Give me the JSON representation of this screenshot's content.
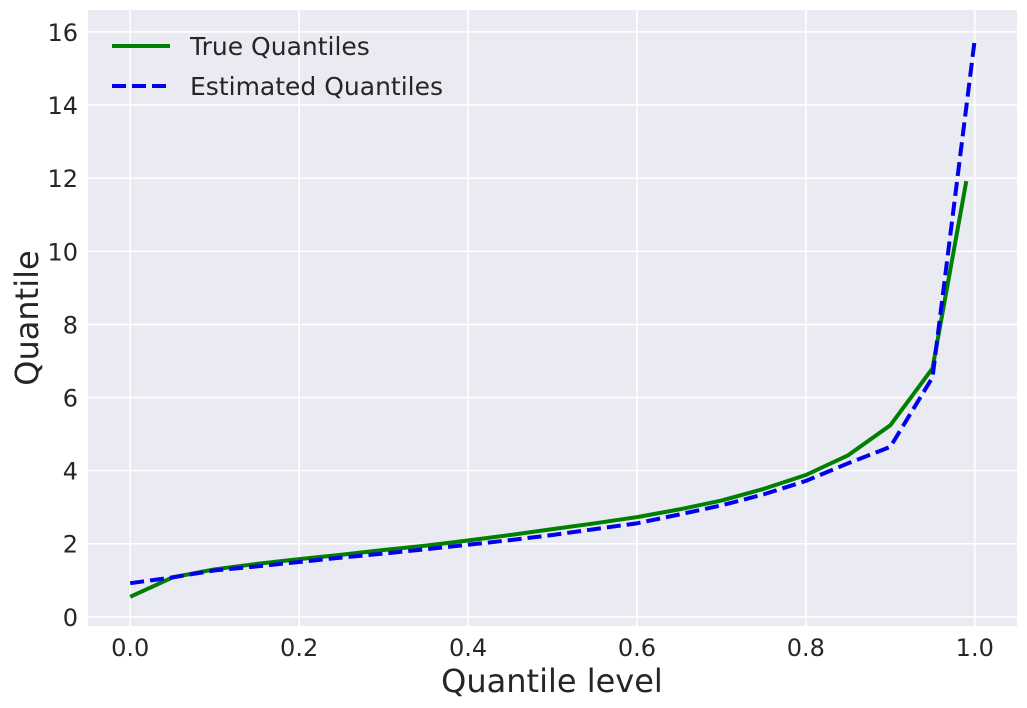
{
  "chart_data": {
    "type": "line",
    "title": "",
    "xlabel": "Quantile level",
    "ylabel": "Quantile",
    "xlim": [
      -0.05,
      1.05
    ],
    "ylim": [
      -0.25,
      16.6
    ],
    "xticks": [
      0.0,
      0.2,
      0.4,
      0.6,
      0.8,
      1.0
    ],
    "xtick_labels": [
      "0.0",
      "0.2",
      "0.4",
      "0.6",
      "0.8",
      "1.0"
    ],
    "yticks": [
      0,
      2,
      4,
      6,
      8,
      10,
      12,
      14,
      16
    ],
    "ytick_labels": [
      "0",
      "2",
      "4",
      "6",
      "8",
      "10",
      "12",
      "14",
      "16"
    ],
    "grid": true,
    "background": "#eaeaf2",
    "legend_position": "top-left",
    "series": [
      {
        "name": "True Quantiles",
        "color": "#008000",
        "style": "solid",
        "x": [
          0.0,
          0.05,
          0.1,
          0.15,
          0.2,
          0.25,
          0.3,
          0.35,
          0.4,
          0.45,
          0.5,
          0.55,
          0.6,
          0.65,
          0.7,
          0.75,
          0.8,
          0.85,
          0.9,
          0.95,
          0.99
        ],
        "y": [
          0.55,
          1.08,
          1.3,
          1.45,
          1.58,
          1.7,
          1.83,
          1.95,
          2.09,
          2.24,
          2.4,
          2.56,
          2.73,
          2.94,
          3.18,
          3.5,
          3.88,
          4.42,
          5.24,
          6.8,
          11.92
        ]
      },
      {
        "name": "Estimated Quantiles",
        "color": "#0000ee",
        "style": "dashed",
        "x": [
          0.0,
          0.05,
          0.1,
          0.15,
          0.2,
          0.25,
          0.3,
          0.35,
          0.4,
          0.45,
          0.5,
          0.55,
          0.6,
          0.65,
          0.7,
          0.75,
          0.8,
          0.85,
          0.9,
          0.95,
          1.0
        ],
        "y": [
          0.92,
          1.08,
          1.27,
          1.38,
          1.5,
          1.62,
          1.73,
          1.85,
          1.97,
          2.1,
          2.24,
          2.4,
          2.56,
          2.8,
          3.05,
          3.35,
          3.72,
          4.2,
          4.65,
          6.55,
          15.8
        ]
      }
    ]
  }
}
